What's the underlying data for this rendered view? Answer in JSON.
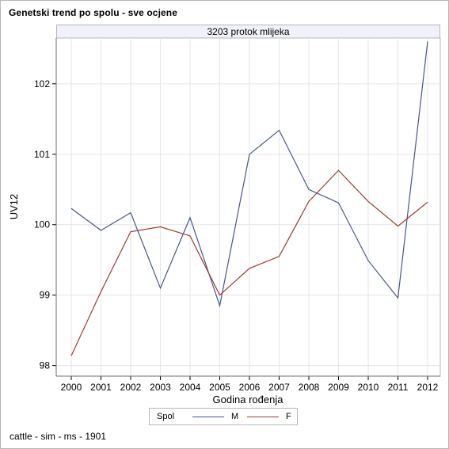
{
  "title": "Genetski trend po spolu - sve ocjene",
  "panel_label": "3203 protok mlijeka",
  "footnote": "cattle - sim - ms - 1901",
  "legend": {
    "title": "Spol",
    "items": [
      {
        "label": "M",
        "color": "#445694"
      },
      {
        "label": "F",
        "color": "#a23a2e"
      }
    ]
  },
  "chart_data": {
    "type": "line",
    "x": [
      2000,
      2001,
      2002,
      2003,
      2004,
      2005,
      2006,
      2007,
      2008,
      2009,
      2010,
      2011,
      2012
    ],
    "x_tick_labels": [
      "2000",
      "2001",
      "2002",
      "2003",
      "2004",
      "2005",
      "2006",
      "2007",
      "2008",
      "2009",
      "2010",
      "2011",
      "2012"
    ],
    "y_ticks": [
      98,
      99,
      100,
      101,
      102
    ],
    "y_tick_labels": [
      "98",
      "99",
      "100",
      "101",
      "102"
    ],
    "xlabel": "Godina rođenja",
    "ylabel": "UV12",
    "ylim": [
      97.85,
      102.65
    ],
    "grid": true,
    "legend_position": "bottom",
    "series": [
      {
        "name": "M",
        "color": "#445694",
        "values": [
          100.23,
          99.92,
          100.17,
          99.1,
          100.1,
          98.85,
          101.0,
          101.34,
          100.5,
          100.31,
          99.49,
          98.96,
          102.6
        ]
      },
      {
        "name": "F",
        "color": "#a23a2e",
        "values": [
          98.14,
          99.05,
          99.9,
          99.97,
          99.84,
          99.0,
          99.38,
          99.55,
          100.33,
          100.77,
          100.33,
          99.98,
          100.32
        ]
      }
    ]
  }
}
